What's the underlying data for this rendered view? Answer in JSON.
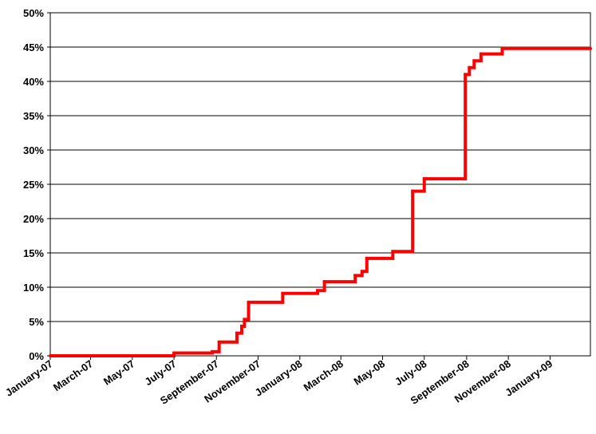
{
  "chart_data": {
    "type": "line",
    "title": "",
    "xlabel": "",
    "ylabel": "",
    "ylim": [
      0,
      50
    ],
    "y_unit": "%",
    "y_ticks": [
      "0%",
      "5%",
      "10%",
      "15%",
      "20%",
      "25%",
      "30%",
      "35%",
      "40%",
      "45%",
      "50%"
    ],
    "x_range": [
      "2007-01-01",
      "2009-03-01"
    ],
    "x_ticks": [
      {
        "date": "2007-01-01",
        "label": "January-07"
      },
      {
        "date": "2007-03-01",
        "label": "March-07"
      },
      {
        "date": "2007-05-01",
        "label": "May-07"
      },
      {
        "date": "2007-07-01",
        "label": "July-07"
      },
      {
        "date": "2007-09-01",
        "label": "September-07"
      },
      {
        "date": "2007-11-01",
        "label": "November-07"
      },
      {
        "date": "2008-01-01",
        "label": "January-08"
      },
      {
        "date": "2008-03-01",
        "label": "March-08"
      },
      {
        "date": "2008-05-01",
        "label": "May-08"
      },
      {
        "date": "2008-07-01",
        "label": "July-08"
      },
      {
        "date": "2008-09-01",
        "label": "September-08"
      },
      {
        "date": "2008-11-01",
        "label": "November-08"
      },
      {
        "date": "2009-01-01",
        "label": "January-09"
      }
    ],
    "grid": true,
    "legend": "none",
    "line_color": "#ff0000",
    "series": [
      {
        "step": true,
        "points": [
          {
            "x": "2007-01-01",
            "y": 0
          },
          {
            "x": "2007-07-01",
            "y": 0.4
          },
          {
            "x": "2007-08-26",
            "y": 0.6
          },
          {
            "x": "2007-09-05",
            "y": 2.0
          },
          {
            "x": "2007-10-01",
            "y": 3.3
          },
          {
            "x": "2007-10-08",
            "y": 4.3
          },
          {
            "x": "2007-10-12",
            "y": 5.3
          },
          {
            "x": "2007-10-18",
            "y": 7.8
          },
          {
            "x": "2007-12-07",
            "y": 9.1
          },
          {
            "x": "2008-01-27",
            "y": 9.5
          },
          {
            "x": "2008-02-06",
            "y": 10.8
          },
          {
            "x": "2008-03-22",
            "y": 11.7
          },
          {
            "x": "2008-04-01",
            "y": 12.3
          },
          {
            "x": "2008-04-08",
            "y": 14.2
          },
          {
            "x": "2008-05-16",
            "y": 15.2
          },
          {
            "x": "2008-06-14",
            "y": 24.0
          },
          {
            "x": "2008-07-01",
            "y": 25.8
          },
          {
            "x": "2008-08-30",
            "y": 41.0
          },
          {
            "x": "2008-09-05",
            "y": 42.0
          },
          {
            "x": "2008-09-12",
            "y": 43.0
          },
          {
            "x": "2008-09-22",
            "y": 44.0
          },
          {
            "x": "2008-10-23",
            "y": 44.8
          },
          {
            "x": "2009-03-01",
            "y": 44.8
          }
        ]
      }
    ]
  }
}
